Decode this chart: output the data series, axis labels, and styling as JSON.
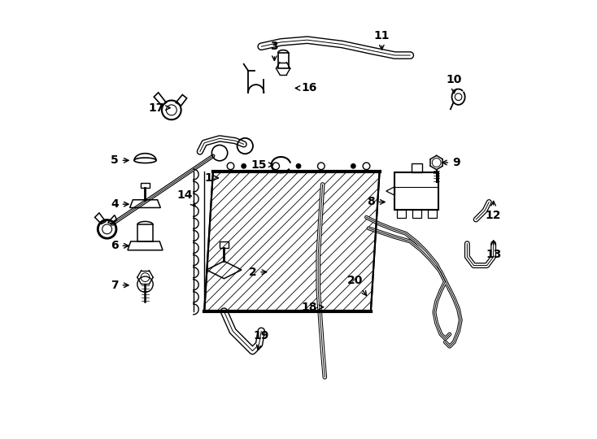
{
  "background_color": "#ffffff",
  "line_color": "#000000",
  "figsize": [
    7.34,
    5.4
  ],
  "dpi": 100,
  "parts_labels": {
    "1": [
      0.295,
      0.595,
      0.03,
      0.0
    ],
    "2": [
      0.395,
      0.38,
      0.04,
      0.0
    ],
    "3": [
      0.445,
      0.895,
      0.0,
      -0.04
    ],
    "4": [
      0.08,
      0.535,
      0.04,
      0.0
    ],
    "5": [
      0.08,
      0.635,
      0.04,
      0.0
    ],
    "6": [
      0.08,
      0.44,
      0.04,
      0.0
    ],
    "7": [
      0.08,
      0.35,
      0.04,
      0.0
    ],
    "8": [
      0.665,
      0.54,
      0.04,
      0.0
    ],
    "9": [
      0.86,
      0.63,
      -0.04,
      0.0
    ],
    "10": [
      0.855,
      0.82,
      0.0,
      -0.04
    ],
    "11": [
      0.69,
      0.92,
      0.0,
      -0.04
    ],
    "12": [
      0.945,
      0.51,
      0.0,
      0.04
    ],
    "13": [
      0.945,
      0.42,
      0.0,
      0.04
    ],
    "14": [
      0.24,
      0.555,
      0.03,
      -0.03
    ],
    "15": [
      0.41,
      0.625,
      0.04,
      0.0
    ],
    "16": [
      0.525,
      0.8,
      -0.04,
      0.0
    ],
    "17": [
      0.175,
      0.755,
      0.04,
      0.0
    ],
    "18": [
      0.525,
      0.3,
      0.04,
      0.0
    ],
    "19": [
      0.415,
      0.235,
      -0.01,
      -0.04
    ],
    "20": [
      0.63,
      0.36,
      0.03,
      -0.04
    ]
  }
}
